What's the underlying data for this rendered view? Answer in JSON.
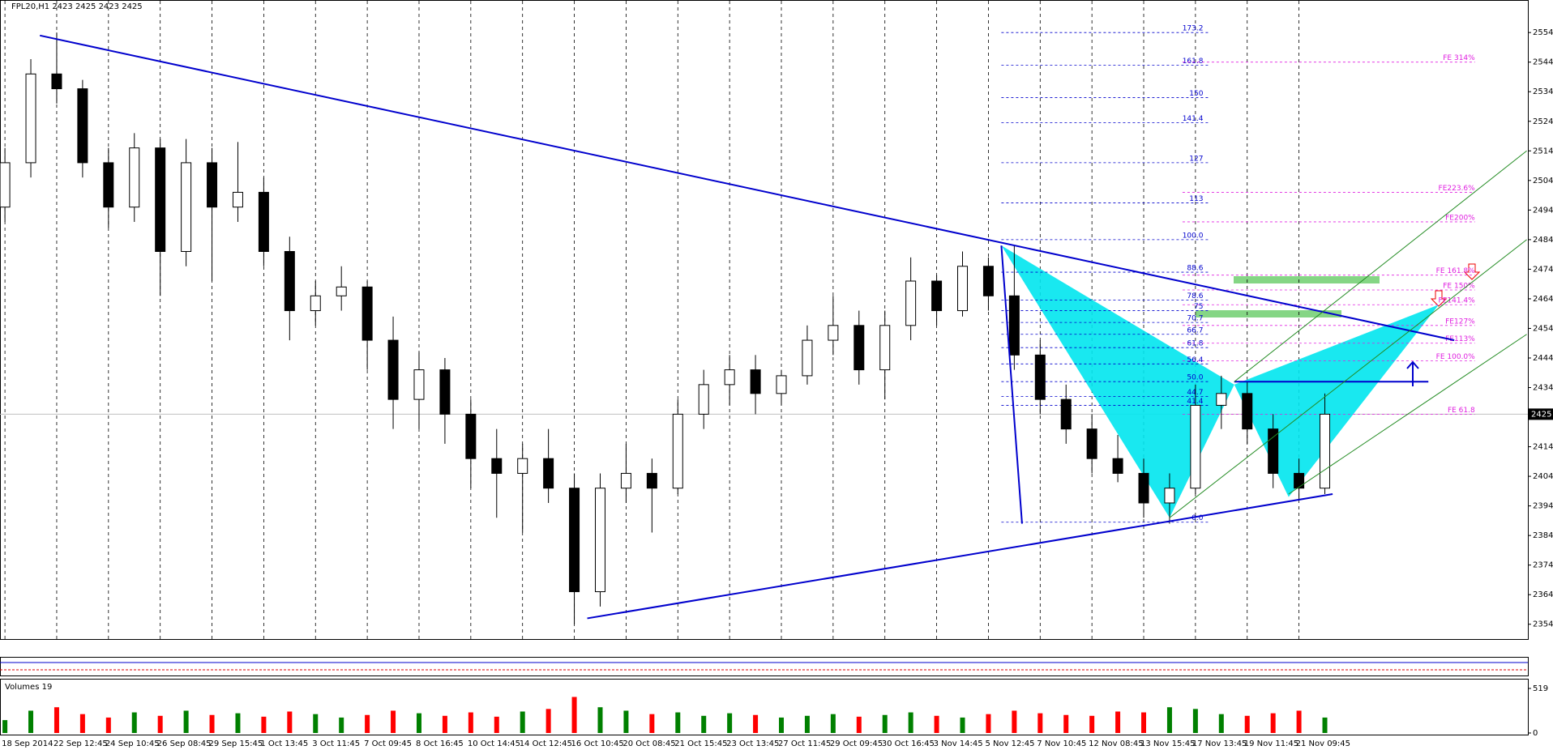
{
  "chart_data": [
    {
      "type": "candlestick",
      "title": "FPL20,H1  2423 2425 2423 2425",
      "categories": [
        "18 Sep 2014",
        null,
        "22 Sep 12:45",
        null,
        "24 Sep 10:45",
        null,
        "26 Sep 08:45",
        null,
        "29 Sep 15:45",
        null,
        "1 Oct 13:45",
        null,
        "3 Oct 11:45",
        null,
        "7 Oct 09:45",
        null,
        "8 Oct 16:45",
        null,
        "10 Oct 14:45",
        null,
        "14 Oct 12:45",
        null,
        "16 Oct 10:45",
        null,
        "20 Oct 08:45",
        null,
        "21 Oct 15:45",
        null,
        "23 Oct 13:45",
        null,
        "27 Oct 11:45",
        null,
        "29 Oct 09:45",
        null,
        "30 Oct 16:45",
        null,
        "3 Nov 14:45",
        null,
        "5 Nov 12:45",
        null,
        "7 Nov 10:45",
        null,
        "12 Nov 08:45",
        null,
        "13 Nov 15:45",
        null,
        "17 Nov 13:45",
        null,
        "19 Nov 11:45",
        null,
        "21 Nov 09:45",
        null
      ],
      "open": [
        2495,
        2510,
        2540,
        2535,
        2510,
        2495,
        2515,
        2480,
        2510,
        2495,
        2500,
        2480,
        2460,
        2465,
        2468,
        2450,
        2430,
        2440,
        2425,
        2410,
        2405,
        2410,
        2400,
        2365,
        2400,
        2405,
        2400,
        2425,
        2435,
        2440,
        2432,
        2438,
        2450,
        2455,
        2440,
        2455,
        2470,
        2460,
        2475,
        2465,
        2445,
        2430,
        2420,
        2410,
        2405,
        2395,
        2400,
        2428,
        2432,
        2420,
        2405,
        2400
      ],
      "high": [
        2515,
        2545,
        2554,
        2538,
        2515,
        2520,
        2518,
        2518,
        2515,
        2517,
        2505,
        2485,
        2470,
        2475,
        2470,
        2458,
        2446,
        2444,
        2430,
        2420,
        2415,
        2420,
        2405,
        2405,
        2415,
        2410,
        2430,
        2440,
        2445,
        2445,
        2440,
        2455,
        2465,
        2460,
        2460,
        2478,
        2472,
        2480,
        2478,
        2482,
        2450,
        2435,
        2425,
        2418,
        2410,
        2405,
        2435,
        2438,
        2436,
        2425,
        2410,
        2432
      ],
      "low": [
        2490,
        2505,
        2530,
        2505,
        2488,
        2490,
        2465,
        2475,
        2470,
        2490,
        2475,
        2450,
        2455,
        2460,
        2440,
        2420,
        2420,
        2415,
        2400,
        2390,
        2385,
        2395,
        2354,
        2360,
        2395,
        2385,
        2398,
        2420,
        2428,
        2425,
        2428,
        2435,
        2445,
        2435,
        2430,
        2450,
        2455,
        2458,
        2460,
        2440,
        2425,
        2415,
        2405,
        2402,
        2390,
        2388,
        2398,
        2420,
        2415,
        2400,
        2396,
        2398
      ],
      "close": [
        2510,
        2540,
        2535,
        2510,
        2495,
        2515,
        2480,
        2510,
        2495,
        2500,
        2480,
        2460,
        2465,
        2468,
        2450,
        2430,
        2440,
        2425,
        2410,
        2405,
        2410,
        2400,
        2365,
        2400,
        2405,
        2400,
        2425,
        2435,
        2440,
        2432,
        2438,
        2450,
        2455,
        2440,
        2455,
        2470,
        2460,
        2475,
        2465,
        2445,
        2430,
        2420,
        2410,
        2405,
        2395,
        2400,
        2428,
        2432,
        2420,
        2405,
        2400,
        2425
      ],
      "up_color": "#ffffff",
      "down_color": "#000000",
      "ylim": [
        2349,
        2565
      ],
      "yticks": [
        2354,
        2364,
        2374,
        2384,
        2394,
        2404,
        2414,
        2424,
        2434,
        2444,
        2454,
        2464,
        2474,
        2484,
        2494,
        2504,
        2514,
        2524,
        2534,
        2544,
        2554
      ],
      "last_price": 2425,
      "trendlines": [
        {
          "x": [
            1.35,
            56.0
          ],
          "y": [
            2553,
            2450
          ],
          "color": "#0000cd"
        },
        {
          "x": [
            22.5,
            51.3
          ],
          "y": [
            2356,
            2398
          ],
          "color": "#0000cd"
        },
        {
          "x": [
            38.5,
            39.3
          ],
          "y": [
            2482,
            2388
          ],
          "color": "#0000cd"
        },
        {
          "x": [
            47.5,
            55.0
          ],
          "y": [
            2436,
            2436
          ],
          "color": "#0000cd"
        },
        {
          "x": [
            45.0,
            58.8
          ],
          "y": [
            2390,
            2484
          ],
          "color": "#228b22"
        },
        {
          "x": [
            47.5,
            58.8
          ],
          "y": [
            2436,
            2514
          ],
          "color": "#228b22"
        },
        {
          "x": [
            49.6,
            58.8
          ],
          "y": [
            2398,
            2452
          ],
          "color": "#228b22"
        }
      ],
      "patterns": [
        {
          "x": [
            38.5,
            45.0,
            47.5
          ],
          "y": [
            2482,
            2390,
            2435
          ],
          "color": "#00e5ee"
        },
        {
          "x": [
            47.5,
            49.6,
            55.4
          ],
          "y": [
            2435,
            2397,
            2462
          ],
          "color": "#00e5ee"
        }
      ],
      "fib_levels": [
        {
          "value": 2554,
          "label": "173.2"
        },
        {
          "value": 2543,
          "label": "161.8"
        },
        {
          "value": 2532,
          "label": "150"
        },
        {
          "value": 2523.5,
          "label": "141.4"
        },
        {
          "value": 2510,
          "label": "127"
        },
        {
          "value": 2496.4,
          "label": "113"
        },
        {
          "value": 2484,
          "label": "100.0"
        },
        {
          "value": 2473,
          "label": "88.6"
        },
        {
          "value": 2463.6,
          "label": "78.6"
        },
        {
          "value": 2460,
          "label": "75"
        },
        {
          "value": 2456,
          "label": "70.7"
        },
        {
          "value": 2452,
          "label": "66.7"
        },
        {
          "value": 2447.5,
          "label": "61.8"
        },
        {
          "value": 2442,
          "label": "56.4"
        },
        {
          "value": 2436,
          "label": "50.0"
        },
        {
          "value": 2431,
          "label": "44.7"
        },
        {
          "value": 2428,
          "label": "41.4"
        },
        {
          "value": 2388.5,
          "label": "0.0"
        }
      ],
      "fe_levels": [
        {
          "value": 2544,
          "label": "FE 314%"
        },
        {
          "value": 2500,
          "label": "FE223.6%"
        },
        {
          "value": 2490,
          "label": "FE200%"
        },
        {
          "value": 2472,
          "label": "FE 161.8%"
        },
        {
          "value": 2467,
          "label": "FE 150%"
        },
        {
          "value": 2462,
          "label": "FE141.4%"
        },
        {
          "value": 2455,
          "label": "FE127%"
        },
        {
          "value": 2449,
          "label": "FE113%"
        },
        {
          "value": 2443,
          "label": "FE 100.0%"
        },
        {
          "value": 2425,
          "label": "FE 61.8"
        }
      ]
    },
    {
      "type": "bar",
      "title": "Volumes 19",
      "values": [
        150,
        260,
        300,
        220,
        180,
        240,
        200,
        260,
        210,
        230,
        190,
        250,
        220,
        180,
        210,
        260,
        230,
        200,
        240,
        190,
        250,
        280,
        420,
        300,
        260,
        220,
        240,
        200,
        230,
        210,
        180,
        200,
        220,
        190,
        210,
        240,
        200,
        180,
        220,
        260,
        230,
        210,
        200,
        250,
        240,
        300,
        280,
        220,
        200,
        230,
        260,
        180
      ],
      "up_color": "#008000",
      "down_color": "#ff0000",
      "ylim": [
        0,
        519
      ],
      "yticks": [
        0,
        519
      ]
    }
  ]
}
